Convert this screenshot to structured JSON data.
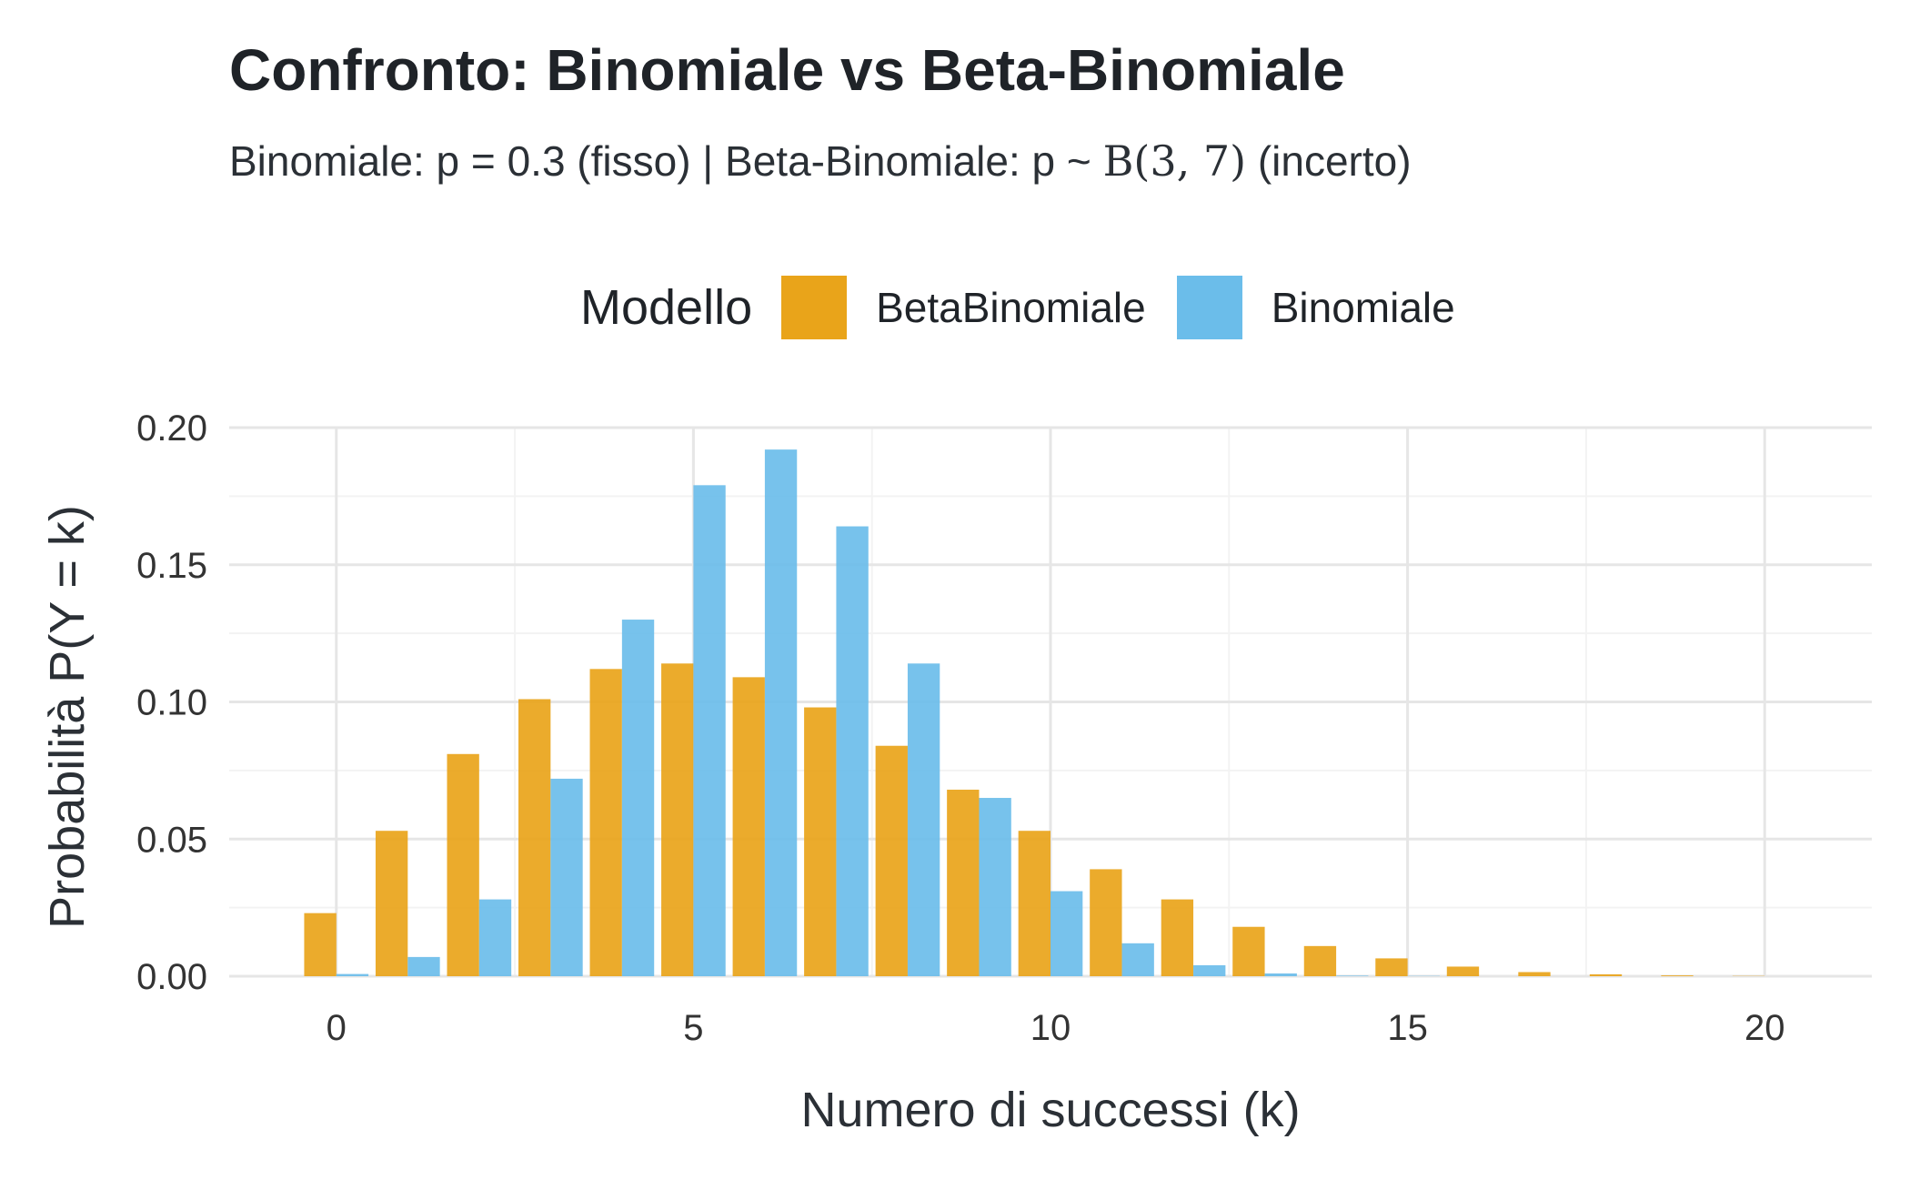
{
  "title": "Confronto: Binomiale vs Beta-Binomiale",
  "subtitle": {
    "part1": "Binomiale: p",
    "eq": "=",
    "part2": "0.3 (fisso) | Beta-Binomiale: p",
    "tilde": "~",
    "math": "B(3, 7)",
    "part3": "(incerto)"
  },
  "legend": {
    "title": "Modello",
    "items": [
      {
        "label": "BetaBinomiale",
        "color": "#E9A41A"
      },
      {
        "label": "Binomiale",
        "color": "#6BBDEA"
      }
    ]
  },
  "chart_data": {
    "type": "bar",
    "xlabel": "Numero di successi (k)",
    "ylabel": "Probabilità P(Y = k)",
    "xlim": [
      -1.5,
      21.5
    ],
    "ylim": [
      0,
      0.2
    ],
    "x_ticks": [
      "0",
      "5",
      "10",
      "15",
      "20"
    ],
    "y_ticks": [
      "0.00",
      "0.05",
      "0.10",
      "0.15",
      "0.20"
    ],
    "grid": true,
    "legend_position": "top",
    "x": [
      0,
      1,
      2,
      3,
      4,
      5,
      6,
      7,
      8,
      9,
      10,
      11,
      12,
      13,
      14,
      15,
      16,
      17,
      18,
      19,
      20
    ],
    "series": [
      {
        "name": "BetaBinomiale",
        "color": "#E9A41A",
        "values": [
          0.023,
          0.053,
          0.081,
          0.101,
          0.112,
          0.114,
          0.109,
          0.098,
          0.084,
          0.068,
          0.053,
          0.039,
          0.028,
          0.018,
          0.011,
          0.0065,
          0.0035,
          0.0015,
          0.0007,
          0.0003,
          0.0001
        ]
      },
      {
        "name": "Binomiale",
        "color": "#6BBDEA",
        "values": [
          0.0008,
          0.007,
          0.028,
          0.072,
          0.13,
          0.179,
          0.192,
          0.164,
          0.114,
          0.065,
          0.031,
          0.012,
          0.004,
          0.001,
          0.0002,
          0.0001,
          0,
          0,
          0,
          0,
          0
        ]
      }
    ]
  }
}
